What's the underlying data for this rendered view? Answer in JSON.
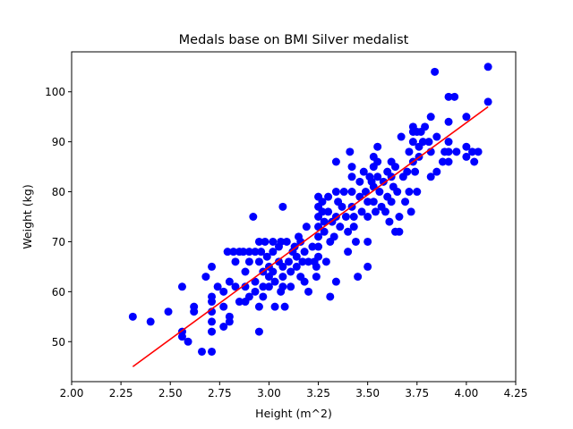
{
  "chart_data": {
    "type": "scatter",
    "title": "Medals base on BMI Silver medalist",
    "xlabel": "Height (m^2)",
    "ylabel": "Weight (kg)",
    "xlim": [
      2.0,
      4.25
    ],
    "ylim": [
      42,
      108
    ],
    "xticks": [
      2.0,
      2.25,
      2.5,
      2.75,
      3.0,
      3.25,
      3.5,
      3.75,
      4.0,
      4.25
    ],
    "xtick_labels": [
      "2.00",
      "2.25",
      "2.50",
      "2.75",
      "3.00",
      "3.25",
      "3.50",
      "3.75",
      "4.00",
      "4.25"
    ],
    "yticks": [
      50,
      60,
      70,
      80,
      90,
      100
    ],
    "ytick_labels": [
      "50",
      "60",
      "70",
      "80",
      "90",
      "100"
    ],
    "grid": false,
    "colors": {
      "points": "#0000ff",
      "fit_line": "#ff0000"
    },
    "series": [
      {
        "type": "scatter",
        "points": [
          [
            2.31,
            55
          ],
          [
            2.4,
            54
          ],
          [
            2.49,
            56
          ],
          [
            2.56,
            61
          ],
          [
            2.56,
            52
          ],
          [
            2.56,
            51
          ],
          [
            2.59,
            50
          ],
          [
            2.62,
            57
          ],
          [
            2.62,
            56
          ],
          [
            2.66,
            48
          ],
          [
            2.68,
            63
          ],
          [
            2.71,
            65
          ],
          [
            2.71,
            59
          ],
          [
            2.71,
            58
          ],
          [
            2.71,
            56
          ],
          [
            2.71,
            54
          ],
          [
            2.71,
            52
          ],
          [
            2.71,
            48
          ],
          [
            2.74,
            61
          ],
          [
            2.77,
            60
          ],
          [
            2.77,
            57
          ],
          [
            2.77,
            53
          ],
          [
            2.79,
            68
          ],
          [
            2.8,
            62
          ],
          [
            2.8,
            55
          ],
          [
            2.8,
            54
          ],
          [
            2.82,
            68
          ],
          [
            2.83,
            66
          ],
          [
            2.83,
            61
          ],
          [
            2.85,
            68
          ],
          [
            2.85,
            58
          ],
          [
            2.87,
            68
          ],
          [
            2.88,
            64
          ],
          [
            2.88,
            61
          ],
          [
            2.88,
            58
          ],
          [
            2.9,
            68
          ],
          [
            2.9,
            66
          ],
          [
            2.9,
            59
          ],
          [
            2.92,
            75
          ],
          [
            2.93,
            68
          ],
          [
            2.93,
            62
          ],
          [
            2.93,
            60
          ],
          [
            2.95,
            70
          ],
          [
            2.95,
            66
          ],
          [
            2.95,
            57
          ],
          [
            2.95,
            52
          ],
          [
            2.96,
            68
          ],
          [
            2.97,
            64
          ],
          [
            2.97,
            61
          ],
          [
            2.97,
            59
          ],
          [
            2.98,
            70
          ],
          [
            2.99,
            67
          ],
          [
            3.0,
            65
          ],
          [
            3.0,
            63
          ],
          [
            3.0,
            61
          ],
          [
            3.02,
            70
          ],
          [
            3.02,
            68
          ],
          [
            3.02,
            64
          ],
          [
            3.03,
            62
          ],
          [
            3.03,
            57
          ],
          [
            3.05,
            69
          ],
          [
            3.05,
            66
          ],
          [
            3.06,
            70
          ],
          [
            3.06,
            60
          ],
          [
            3.07,
            77
          ],
          [
            3.07,
            65
          ],
          [
            3.07,
            63
          ],
          [
            3.07,
            61
          ],
          [
            3.08,
            57
          ],
          [
            3.09,
            70
          ],
          [
            3.1,
            66
          ],
          [
            3.11,
            64
          ],
          [
            3.11,
            61
          ],
          [
            3.12,
            68
          ],
          [
            3.13,
            69
          ],
          [
            3.14,
            67
          ],
          [
            3.14,
            65
          ],
          [
            3.15,
            71
          ],
          [
            3.16,
            70
          ],
          [
            3.16,
            63
          ],
          [
            3.17,
            66
          ],
          [
            3.18,
            68
          ],
          [
            3.18,
            62
          ],
          [
            3.19,
            73
          ],
          [
            3.2,
            66
          ],
          [
            3.2,
            60
          ],
          [
            3.22,
            69
          ],
          [
            3.23,
            66
          ],
          [
            3.24,
            65
          ],
          [
            3.24,
            63
          ],
          [
            3.25,
            79
          ],
          [
            3.25,
            77
          ],
          [
            3.25,
            75
          ],
          [
            3.25,
            73
          ],
          [
            3.25,
            71
          ],
          [
            3.25,
            69
          ],
          [
            3.25,
            67
          ],
          [
            3.27,
            78
          ],
          [
            3.27,
            76
          ],
          [
            3.28,
            74
          ],
          [
            3.28,
            72
          ],
          [
            3.29,
            66
          ],
          [
            3.3,
            79
          ],
          [
            3.3,
            76
          ],
          [
            3.31,
            70
          ],
          [
            3.31,
            59
          ],
          [
            3.32,
            74
          ],
          [
            3.33,
            71
          ],
          [
            3.34,
            86
          ],
          [
            3.34,
            80
          ],
          [
            3.34,
            75
          ],
          [
            3.34,
            62
          ],
          [
            3.35,
            78
          ],
          [
            3.36,
            73
          ],
          [
            3.37,
            77
          ],
          [
            3.38,
            80
          ],
          [
            3.39,
            75
          ],
          [
            3.4,
            72
          ],
          [
            3.4,
            68
          ],
          [
            3.41,
            88
          ],
          [
            3.42,
            85
          ],
          [
            3.42,
            83
          ],
          [
            3.42,
            80
          ],
          [
            3.42,
            77
          ],
          [
            3.43,
            75
          ],
          [
            3.43,
            73
          ],
          [
            3.44,
            70
          ],
          [
            3.45,
            63
          ],
          [
            3.46,
            82
          ],
          [
            3.46,
            79
          ],
          [
            3.47,
            76
          ],
          [
            3.48,
            84
          ],
          [
            3.49,
            80
          ],
          [
            3.5,
            78
          ],
          [
            3.5,
            75
          ],
          [
            3.5,
            70
          ],
          [
            3.5,
            65
          ],
          [
            3.51,
            83
          ],
          [
            3.52,
            82
          ],
          [
            3.53,
            87
          ],
          [
            3.53,
            85
          ],
          [
            3.53,
            81
          ],
          [
            3.53,
            78
          ],
          [
            3.54,
            76
          ],
          [
            3.55,
            89
          ],
          [
            3.55,
            86
          ],
          [
            3.55,
            83
          ],
          [
            3.56,
            80
          ],
          [
            3.57,
            77
          ],
          [
            3.58,
            82
          ],
          [
            3.59,
            76
          ],
          [
            3.6,
            84
          ],
          [
            3.6,
            79
          ],
          [
            3.61,
            74
          ],
          [
            3.62,
            86
          ],
          [
            3.62,
            83
          ],
          [
            3.62,
            78
          ],
          [
            3.63,
            81
          ],
          [
            3.64,
            85
          ],
          [
            3.64,
            72
          ],
          [
            3.65,
            80
          ],
          [
            3.66,
            75
          ],
          [
            3.66,
            72
          ],
          [
            3.67,
            91
          ],
          [
            3.68,
            83
          ],
          [
            3.69,
            78
          ],
          [
            3.7,
            84
          ],
          [
            3.71,
            88
          ],
          [
            3.71,
            80
          ],
          [
            3.72,
            76
          ],
          [
            3.73,
            93
          ],
          [
            3.73,
            92
          ],
          [
            3.73,
            90
          ],
          [
            3.73,
            86
          ],
          [
            3.74,
            84
          ],
          [
            3.75,
            92
          ],
          [
            3.75,
            80
          ],
          [
            3.76,
            89
          ],
          [
            3.76,
            87
          ],
          [
            3.77,
            92
          ],
          [
            3.78,
            90
          ],
          [
            3.79,
            93
          ],
          [
            3.81,
            90
          ],
          [
            3.82,
            95
          ],
          [
            3.82,
            88
          ],
          [
            3.82,
            83
          ],
          [
            3.84,
            104
          ],
          [
            3.85,
            91
          ],
          [
            3.85,
            84
          ],
          [
            3.88,
            86
          ],
          [
            3.89,
            88
          ],
          [
            3.91,
            99
          ],
          [
            3.91,
            94
          ],
          [
            3.91,
            90
          ],
          [
            3.91,
            88
          ],
          [
            3.91,
            86
          ],
          [
            3.94,
            99
          ],
          [
            3.95,
            88
          ],
          [
            4.0,
            95
          ],
          [
            4.0,
            89
          ],
          [
            4.0,
            87
          ],
          [
            4.03,
            88
          ],
          [
            4.04,
            86
          ],
          [
            4.06,
            88
          ],
          [
            4.11,
            105
          ],
          [
            4.11,
            98
          ]
        ]
      },
      {
        "type": "line",
        "points": [
          [
            2.31,
            45
          ],
          [
            4.11,
            97
          ]
        ]
      }
    ]
  }
}
